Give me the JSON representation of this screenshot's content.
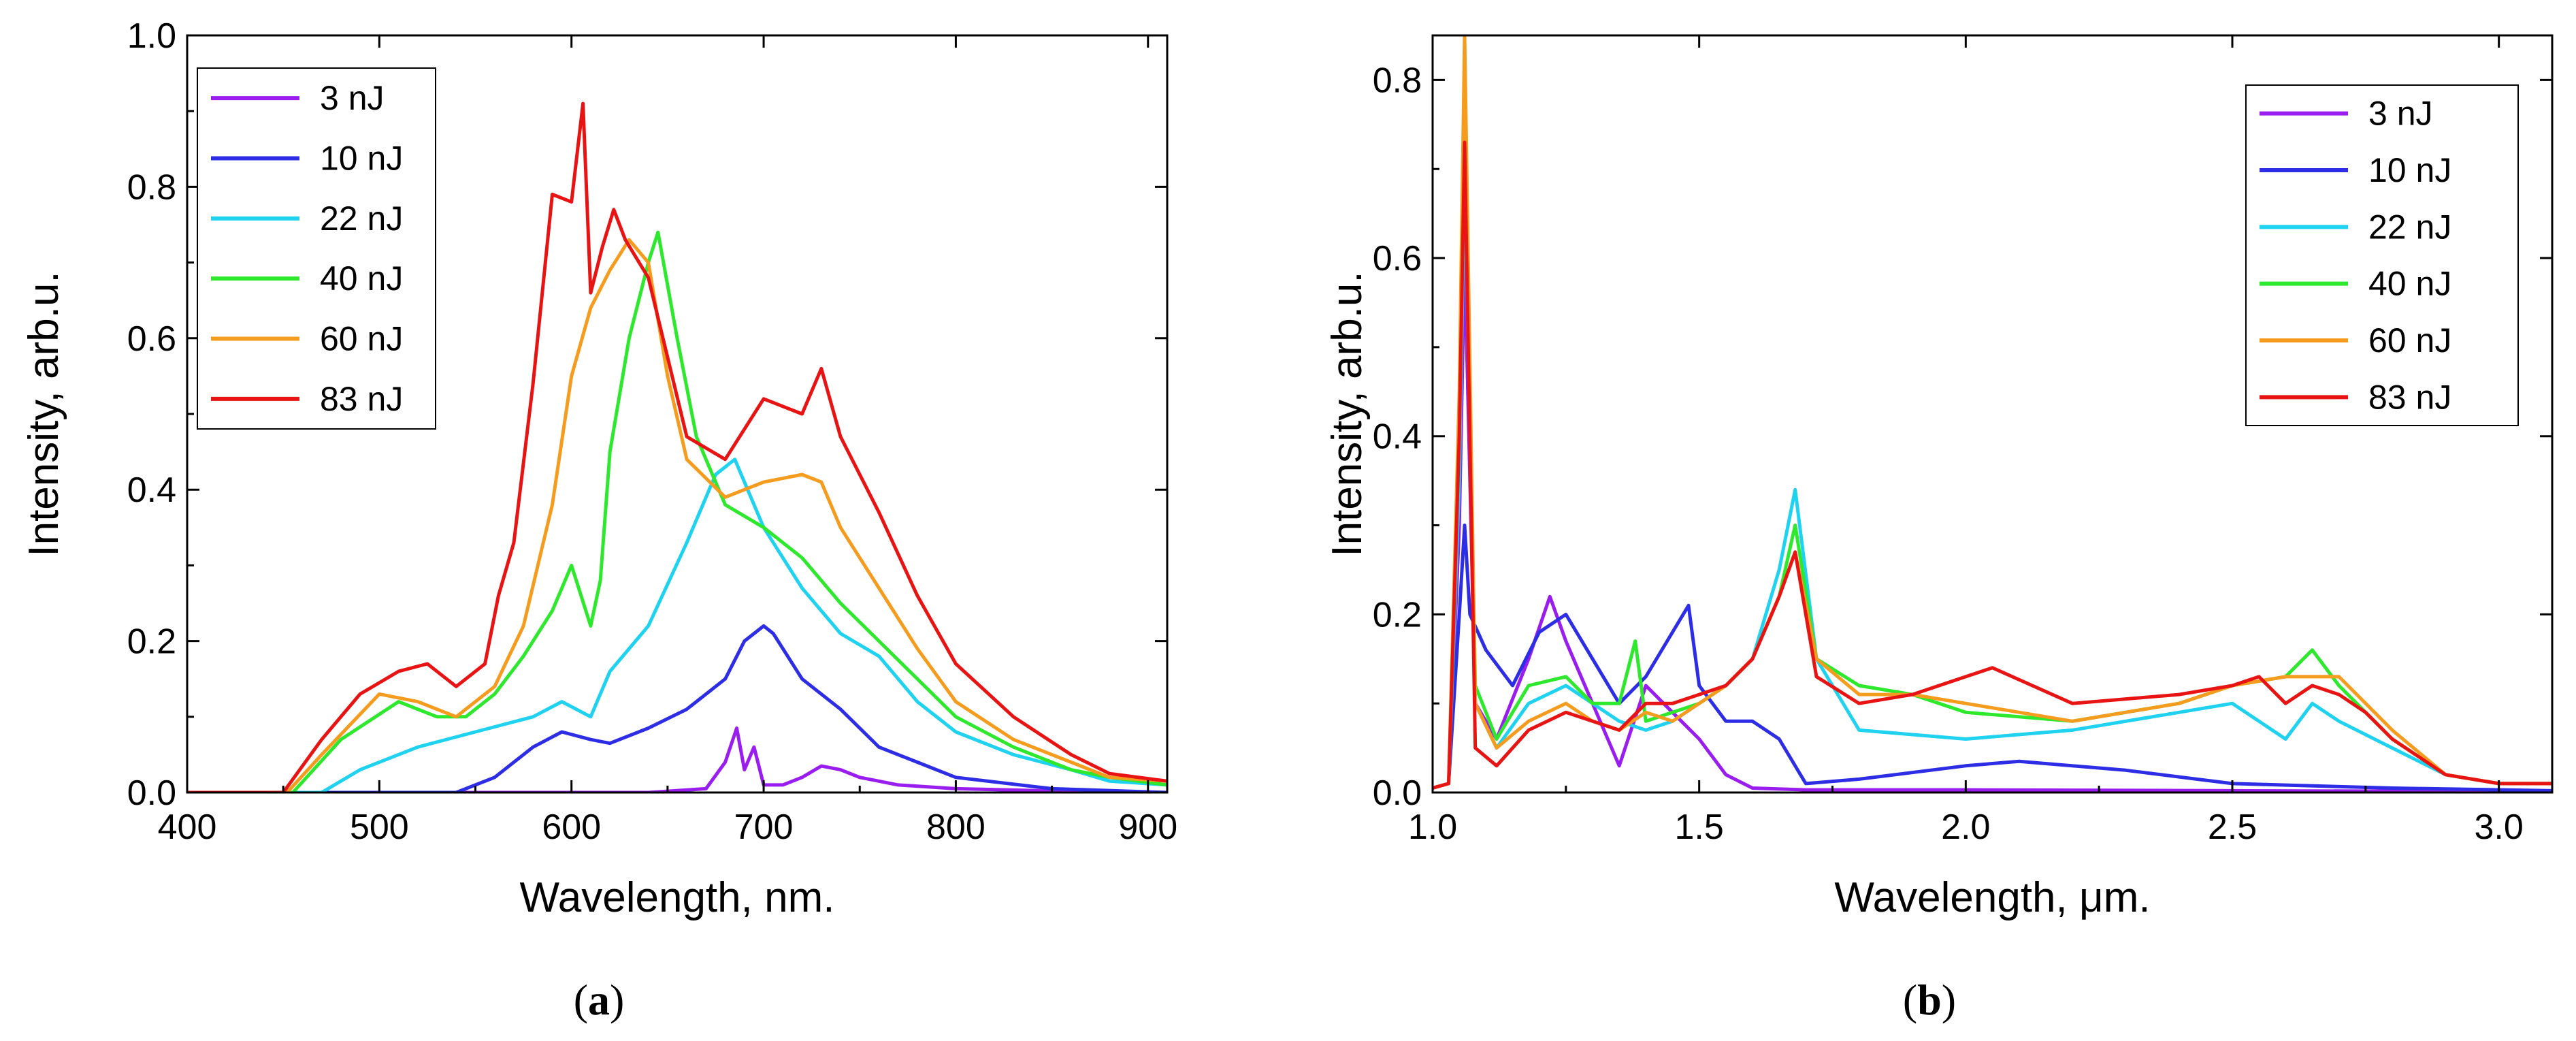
{
  "chart_data": [
    {
      "id": "a",
      "type": "line",
      "caption": "a",
      "xlabel": "Wavelength, nm.",
      "ylabel": "Intensity, arb.u.",
      "xlim": [
        400,
        910
      ],
      "ylim": [
        0,
        1.0
      ],
      "xticks": [
        "400",
        "500",
        "600",
        "700",
        "800",
        "900"
      ],
      "xtick_values": [
        400,
        500,
        600,
        700,
        800,
        900
      ],
      "yticks": [
        "0.0",
        "0.2",
        "0.4",
        "0.6",
        "0.8",
        "1.0"
      ],
      "ytick_values": [
        0,
        0.2,
        0.4,
        0.6,
        0.8,
        1.0
      ],
      "legend_position": "top-left",
      "grid": false,
      "series": [
        {
          "name": "3 nJ",
          "color": "#9a1df0",
          "x": [
            400,
            640,
            670,
            680,
            686,
            690,
            695,
            700,
            710,
            720,
            730,
            740,
            750,
            770,
            800,
            850,
            910
          ],
          "y": [
            0,
            0,
            0.005,
            0.04,
            0.085,
            0.03,
            0.06,
            0.01,
            0.01,
            0.02,
            0.035,
            0.03,
            0.02,
            0.01,
            0.005,
            0.002,
            0
          ]
        },
        {
          "name": "10 nJ",
          "color": "#2d2de6",
          "x": [
            400,
            540,
            560,
            580,
            595,
            610,
            620,
            640,
            660,
            680,
            690,
            700,
            705,
            720,
            740,
            760,
            780,
            800,
            850,
            910
          ],
          "y": [
            0,
            0,
            0.02,
            0.06,
            0.08,
            0.07,
            0.065,
            0.085,
            0.11,
            0.15,
            0.2,
            0.22,
            0.21,
            0.15,
            0.11,
            0.06,
            0.04,
            0.02,
            0.005,
            0
          ]
        },
        {
          "name": "22 nJ",
          "color": "#1ed2f0",
          "x": [
            400,
            470,
            490,
            520,
            550,
            580,
            595,
            610,
            620,
            640,
            660,
            675,
            685,
            700,
            720,
            740,
            760,
            780,
            800,
            830,
            860,
            880,
            910
          ],
          "y": [
            0,
            0,
            0.03,
            0.06,
            0.08,
            0.1,
            0.12,
            0.1,
            0.16,
            0.22,
            0.33,
            0.42,
            0.44,
            0.35,
            0.27,
            0.21,
            0.18,
            0.12,
            0.08,
            0.05,
            0.03,
            0.015,
            0.01
          ]
        },
        {
          "name": "40 nJ",
          "color": "#2ee82e",
          "x": [
            400,
            455,
            480,
            510,
            530,
            545,
            560,
            575,
            590,
            600,
            610,
            615,
            620,
            630,
            640,
            645,
            655,
            665,
            680,
            700,
            720,
            740,
            760,
            780,
            800,
            830,
            860,
            880,
            910
          ],
          "y": [
            0,
            0,
            0.07,
            0.12,
            0.1,
            0.1,
            0.13,
            0.18,
            0.24,
            0.3,
            0.22,
            0.28,
            0.45,
            0.6,
            0.7,
            0.74,
            0.6,
            0.47,
            0.38,
            0.35,
            0.31,
            0.25,
            0.2,
            0.15,
            0.1,
            0.06,
            0.03,
            0.02,
            0.01
          ]
        },
        {
          "name": "60 nJ",
          "color": "#f59c1e",
          "x": [
            400,
            452,
            470,
            500,
            520,
            540,
            560,
            575,
            590,
            600,
            610,
            620,
            630,
            640,
            650,
            660,
            680,
            700,
            720,
            730,
            740,
            760,
            780,
            800,
            830,
            860,
            880,
            910
          ],
          "y": [
            0,
            0,
            0.05,
            0.13,
            0.12,
            0.1,
            0.14,
            0.22,
            0.38,
            0.55,
            0.64,
            0.69,
            0.73,
            0.7,
            0.55,
            0.44,
            0.39,
            0.41,
            0.42,
            0.41,
            0.35,
            0.27,
            0.19,
            0.12,
            0.07,
            0.04,
            0.02,
            0.015
          ]
        },
        {
          "name": "83 nJ",
          "color": "#e81414",
          "x": [
            400,
            450,
            470,
            490,
            510,
            525,
            540,
            555,
            562,
            570,
            580,
            590,
            600,
            606,
            610,
            616,
            622,
            628,
            640,
            660,
            680,
            700,
            720,
            730,
            740,
            760,
            780,
            800,
            830,
            860,
            880,
            910
          ],
          "y": [
            0,
            0,
            0.07,
            0.13,
            0.16,
            0.17,
            0.14,
            0.17,
            0.26,
            0.33,
            0.54,
            0.79,
            0.78,
            0.91,
            0.66,
            0.72,
            0.77,
            0.73,
            0.68,
            0.47,
            0.44,
            0.52,
            0.5,
            0.56,
            0.47,
            0.37,
            0.26,
            0.17,
            0.1,
            0.05,
            0.025,
            0.015
          ]
        }
      ]
    },
    {
      "id": "b",
      "type": "line",
      "caption": "b",
      "xlabel": "Wavelength, μm.",
      "ylabel": "Intensity, arb.u.",
      "xlim": [
        1.0,
        3.1
      ],
      "ylim": [
        0,
        0.85
      ],
      "xticks": [
        "1.0",
        "1.5",
        "2.0",
        "2.5",
        "3.0"
      ],
      "xtick_values": [
        1.0,
        1.5,
        2.0,
        2.5,
        3.0
      ],
      "yticks": [
        "0.0",
        "0.2",
        "0.4",
        "0.6",
        "0.8"
      ],
      "ytick_values": [
        0,
        0.2,
        0.4,
        0.6,
        0.8
      ],
      "legend_position": "top-right",
      "grid": false,
      "series": [
        {
          "name": "3 nJ",
          "color": "#9a1df0",
          "x": [
            1.0,
            1.03,
            1.05,
            1.06,
            1.08,
            1.12,
            1.18,
            1.22,
            1.25,
            1.3,
            1.35,
            1.4,
            1.45,
            1.5,
            1.55,
            1.6,
            1.7,
            2.0,
            2.5,
            3.1
          ],
          "y": [
            0.005,
            0.01,
            0.3,
            0.6,
            0.1,
            0.06,
            0.15,
            0.22,
            0.17,
            0.1,
            0.03,
            0.12,
            0.09,
            0.06,
            0.02,
            0.005,
            0.003,
            0.003,
            0.002,
            0.001
          ]
        },
        {
          "name": "10 nJ",
          "color": "#2d2de6",
          "x": [
            1.0,
            1.03,
            1.05,
            1.06,
            1.07,
            1.1,
            1.15,
            1.2,
            1.25,
            1.3,
            1.35,
            1.4,
            1.45,
            1.48,
            1.5,
            1.55,
            1.6,
            1.65,
            1.7,
            1.8,
            2.0,
            2.1,
            2.3,
            2.5,
            2.8,
            3.1
          ],
          "y": [
            0.005,
            0.01,
            0.2,
            0.3,
            0.2,
            0.16,
            0.12,
            0.18,
            0.2,
            0.15,
            0.1,
            0.13,
            0.18,
            0.21,
            0.12,
            0.08,
            0.08,
            0.06,
            0.01,
            0.015,
            0.03,
            0.035,
            0.025,
            0.01,
            0.005,
            0.002
          ]
        },
        {
          "name": "22 nJ",
          "color": "#1ed2f0",
          "x": [
            1.0,
            1.03,
            1.05,
            1.06,
            1.08,
            1.12,
            1.18,
            1.25,
            1.3,
            1.35,
            1.4,
            1.45,
            1.5,
            1.55,
            1.6,
            1.65,
            1.68,
            1.72,
            1.8,
            2.0,
            2.2,
            2.4,
            2.5,
            2.55,
            2.6,
            2.65,
            2.7,
            2.8,
            2.9,
            3.0,
            3.1
          ],
          "y": [
            0.005,
            0.01,
            0.35,
            0.7,
            0.1,
            0.05,
            0.1,
            0.12,
            0.1,
            0.08,
            0.07,
            0.08,
            0.1,
            0.12,
            0.15,
            0.25,
            0.34,
            0.15,
            0.07,
            0.06,
            0.07,
            0.09,
            0.1,
            0.08,
            0.06,
            0.1,
            0.08,
            0.05,
            0.02,
            0.01,
            0.01
          ]
        },
        {
          "name": "40 nJ",
          "color": "#2ee82e",
          "x": [
            1.0,
            1.03,
            1.05,
            1.06,
            1.08,
            1.12,
            1.18,
            1.25,
            1.3,
            1.35,
            1.38,
            1.4,
            1.45,
            1.5,
            1.55,
            1.6,
            1.65,
            1.68,
            1.72,
            1.8,
            1.9,
            2.0,
            2.2,
            2.4,
            2.5,
            2.6,
            2.65,
            2.7,
            2.8,
            2.9,
            3.0,
            3.1
          ],
          "y": [
            0.005,
            0.01,
            0.4,
            0.75,
            0.12,
            0.06,
            0.12,
            0.13,
            0.1,
            0.1,
            0.17,
            0.08,
            0.09,
            0.1,
            0.12,
            0.15,
            0.22,
            0.3,
            0.15,
            0.12,
            0.11,
            0.09,
            0.08,
            0.1,
            0.12,
            0.13,
            0.16,
            0.12,
            0.06,
            0.02,
            0.01,
            0.01
          ]
        },
        {
          "name": "60 nJ",
          "color": "#f59c1e",
          "x": [
            1.0,
            1.03,
            1.05,
            1.06,
            1.08,
            1.12,
            1.18,
            1.25,
            1.3,
            1.35,
            1.4,
            1.45,
            1.5,
            1.55,
            1.6,
            1.65,
            1.68,
            1.72,
            1.8,
            1.9,
            2.0,
            2.2,
            2.4,
            2.5,
            2.6,
            2.7,
            2.8,
            2.9,
            3.0,
            3.1
          ],
          "y": [
            0.005,
            0.01,
            0.45,
            0.85,
            0.1,
            0.05,
            0.08,
            0.1,
            0.08,
            0.07,
            0.09,
            0.08,
            0.1,
            0.12,
            0.15,
            0.22,
            0.27,
            0.15,
            0.11,
            0.11,
            0.1,
            0.08,
            0.1,
            0.12,
            0.13,
            0.13,
            0.07,
            0.02,
            0.01,
            0.01
          ]
        },
        {
          "name": "83 nJ",
          "color": "#e81414",
          "x": [
            1.0,
            1.03,
            1.05,
            1.06,
            1.08,
            1.12,
            1.18,
            1.25,
            1.3,
            1.35,
            1.4,
            1.45,
            1.5,
            1.55,
            1.6,
            1.65,
            1.68,
            1.72,
            1.8,
            1.9,
            2.0,
            2.05,
            2.2,
            2.4,
            2.5,
            2.55,
            2.6,
            2.65,
            2.7,
            2.75,
            2.8,
            2.9,
            3.0,
            3.1
          ],
          "y": [
            0.005,
            0.01,
            0.4,
            0.73,
            0.05,
            0.03,
            0.07,
            0.09,
            0.08,
            0.07,
            0.1,
            0.1,
            0.11,
            0.12,
            0.15,
            0.22,
            0.27,
            0.13,
            0.1,
            0.11,
            0.13,
            0.14,
            0.1,
            0.11,
            0.12,
            0.13,
            0.1,
            0.12,
            0.11,
            0.09,
            0.06,
            0.02,
            0.01,
            0.01
          ]
        }
      ]
    }
  ]
}
